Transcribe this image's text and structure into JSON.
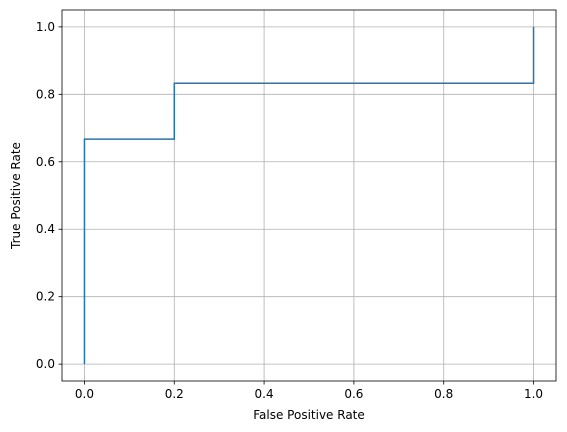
{
  "chart_data": {
    "type": "line",
    "title": "",
    "xlabel": "False Positive Rate",
    "ylabel": "True Positive Rate",
    "xlim": [
      -0.05,
      1.05
    ],
    "ylim": [
      -0.05,
      1.05
    ],
    "x_ticks": [
      0.0,
      0.2,
      0.4,
      0.6,
      0.8,
      1.0
    ],
    "y_ticks": [
      0.0,
      0.2,
      0.4,
      0.6,
      0.8,
      1.0
    ],
    "x_tick_labels": [
      "0.0",
      "0.2",
      "0.4",
      "0.6",
      "0.8",
      "1.0"
    ],
    "y_tick_labels": [
      "0.0",
      "0.2",
      "0.4",
      "0.6",
      "0.8",
      "1.0"
    ],
    "grid": true,
    "series": [
      {
        "color": "#1f77b4",
        "x": [
          0.0,
          0.0,
          0.2,
          0.2,
          1.0,
          1.0
        ],
        "y": [
          0.0,
          0.667,
          0.667,
          0.833,
          0.833,
          1.0
        ]
      }
    ]
  }
}
